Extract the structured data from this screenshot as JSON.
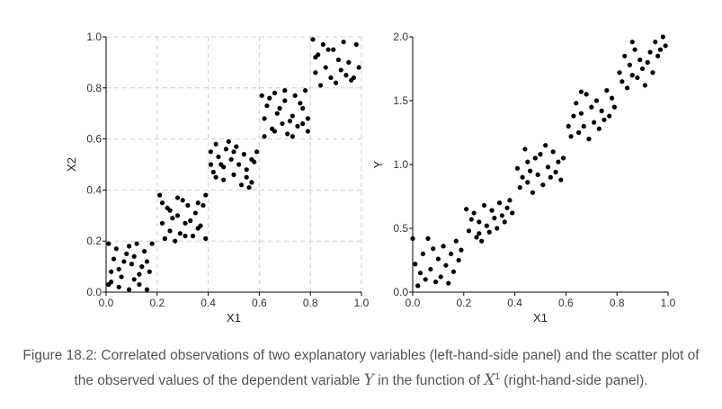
{
  "chart_data": [
    {
      "type": "scatter",
      "xlabel": "X1",
      "ylabel": "X2",
      "xlim": [
        0,
        1
      ],
      "ylim": [
        0,
        1
      ],
      "xticks": [
        "0.0",
        "0.2",
        "0.4",
        "0.6",
        "0.8",
        "1.0"
      ],
      "yticks": [
        "0.0",
        "0.2",
        "0.4",
        "0.6",
        "0.8",
        "1.0"
      ],
      "grid": "dashed",
      "point_color": "#000000",
      "points": [
        [
          0.01,
          0.19
        ],
        [
          0.02,
          0.08
        ],
        [
          0.04,
          0.17
        ],
        [
          0.05,
          0.02
        ],
        [
          0.07,
          0.12
        ],
        [
          0.09,
          0.18
        ],
        [
          0.11,
          0.05
        ],
        [
          0.12,
          0.19
        ],
        [
          0.14,
          0.1
        ],
        [
          0.16,
          0.01
        ],
        [
          0.03,
          0.13
        ],
        [
          0.06,
          0.06
        ],
        [
          0.08,
          0.15
        ],
        [
          0.1,
          0.11
        ],
        [
          0.13,
          0.03
        ],
        [
          0.15,
          0.16
        ],
        [
          0.17,
          0.08
        ],
        [
          0.02,
          0.04
        ],
        [
          0.11,
          0.14
        ],
        [
          0.18,
          0.19
        ],
        [
          0.05,
          0.09
        ],
        [
          0.13,
          0.07
        ],
        [
          0.09,
          0.01
        ],
        [
          0.16,
          0.12
        ],
        [
          0.01,
          0.03
        ],
        [
          0.21,
          0.38
        ],
        [
          0.22,
          0.27
        ],
        [
          0.24,
          0.33
        ],
        [
          0.25,
          0.24
        ],
        [
          0.27,
          0.2
        ],
        [
          0.28,
          0.3
        ],
        [
          0.3,
          0.36
        ],
        [
          0.31,
          0.22
        ],
        [
          0.33,
          0.28
        ],
        [
          0.35,
          0.31
        ],
        [
          0.36,
          0.25
        ],
        [
          0.38,
          0.34
        ],
        [
          0.39,
          0.21
        ],
        [
          0.22,
          0.35
        ],
        [
          0.26,
          0.29
        ],
        [
          0.29,
          0.23
        ],
        [
          0.32,
          0.34
        ],
        [
          0.34,
          0.22
        ],
        [
          0.37,
          0.26
        ],
        [
          0.39,
          0.38
        ],
        [
          0.23,
          0.21
        ],
        [
          0.28,
          0.37
        ],
        [
          0.31,
          0.27
        ],
        [
          0.36,
          0.35
        ],
        [
          0.25,
          0.32
        ],
        [
          0.41,
          0.55
        ],
        [
          0.42,
          0.47
        ],
        [
          0.43,
          0.58
        ],
        [
          0.45,
          0.5
        ],
        [
          0.46,
          0.44
        ],
        [
          0.47,
          0.56
        ],
        [
          0.49,
          0.52
        ],
        [
          0.5,
          0.46
        ],
        [
          0.51,
          0.57
        ],
        [
          0.53,
          0.42
        ],
        [
          0.54,
          0.54
        ],
        [
          0.55,
          0.48
        ],
        [
          0.57,
          0.43
        ],
        [
          0.58,
          0.51
        ],
        [
          0.59,
          0.55
        ],
        [
          0.44,
          0.53
        ],
        [
          0.48,
          0.59
        ],
        [
          0.52,
          0.5
        ],
        [
          0.56,
          0.41
        ],
        [
          0.41,
          0.5
        ],
        [
          0.46,
          0.49
        ],
        [
          0.5,
          0.55
        ],
        [
          0.55,
          0.45
        ],
        [
          0.57,
          0.52
        ],
        [
          0.43,
          0.45
        ],
        [
          0.61,
          0.77
        ],
        [
          0.62,
          0.68
        ],
        [
          0.63,
          0.73
        ],
        [
          0.65,
          0.64
        ],
        [
          0.66,
          0.78
        ],
        [
          0.67,
          0.7
        ],
        [
          0.69,
          0.66
        ],
        [
          0.7,
          0.75
        ],
        [
          0.71,
          0.62
        ],
        [
          0.73,
          0.69
        ],
        [
          0.74,
          0.77
        ],
        [
          0.75,
          0.65
        ],
        [
          0.77,
          0.72
        ],
        [
          0.78,
          0.79
        ],
        [
          0.79,
          0.63
        ],
        [
          0.62,
          0.61
        ],
        [
          0.64,
          0.76
        ],
        [
          0.68,
          0.72
        ],
        [
          0.72,
          0.67
        ],
        [
          0.76,
          0.74
        ],
        [
          0.79,
          0.68
        ],
        [
          0.66,
          0.63
        ],
        [
          0.7,
          0.79
        ],
        [
          0.73,
          0.61
        ],
        [
          0.77,
          0.66
        ],
        [
          0.81,
          0.99
        ],
        [
          0.82,
          0.86
        ],
        [
          0.83,
          0.93
        ],
        [
          0.84,
          0.81
        ],
        [
          0.85,
          0.97
        ],
        [
          0.86,
          0.88
        ],
        [
          0.88,
          0.84
        ],
        [
          0.89,
          0.95
        ],
        [
          0.9,
          0.82
        ],
        [
          0.91,
          0.91
        ],
        [
          0.93,
          0.98
        ],
        [
          0.94,
          0.85
        ],
        [
          0.95,
          0.9
        ],
        [
          0.96,
          0.83
        ],
        [
          0.98,
          0.97
        ],
        [
          0.99,
          0.88
        ],
        [
          0.82,
          0.92
        ],
        [
          0.87,
          0.95
        ],
        [
          0.92,
          0.87
        ],
        [
          0.97,
          0.84
        ]
      ]
    },
    {
      "type": "scatter",
      "xlabel": "X1",
      "ylabel": "Y",
      "xlim": [
        0,
        1
      ],
      "ylim": [
        0,
        2
      ],
      "xticks": [
        "0.0",
        "0.2",
        "0.4",
        "0.6",
        "0.8",
        "1.0"
      ],
      "yticks": [
        "0.0",
        "0.5",
        "1.0",
        "1.5",
        "2.0"
      ],
      "grid": "none",
      "point_color": "#000000",
      "points": [
        [
          0.0,
          0.42
        ],
        [
          0.01,
          0.22
        ],
        [
          0.02,
          0.05
        ],
        [
          0.03,
          0.15
        ],
        [
          0.04,
          0.3
        ],
        [
          0.05,
          0.1
        ],
        [
          0.06,
          0.42
        ],
        [
          0.07,
          0.18
        ],
        [
          0.08,
          0.34
        ],
        [
          0.09,
          0.08
        ],
        [
          0.1,
          0.26
        ],
        [
          0.11,
          0.12
        ],
        [
          0.12,
          0.36
        ],
        [
          0.13,
          0.21
        ],
        [
          0.14,
          0.07
        ],
        [
          0.15,
          0.3
        ],
        [
          0.16,
          0.16
        ],
        [
          0.17,
          0.4
        ],
        [
          0.18,
          0.25
        ],
        [
          0.19,
          0.33
        ],
        [
          0.21,
          0.65
        ],
        [
          0.22,
          0.48
        ],
        [
          0.23,
          0.57
        ],
        [
          0.24,
          0.62
        ],
        [
          0.25,
          0.43
        ],
        [
          0.26,
          0.55
        ],
        [
          0.27,
          0.4
        ],
        [
          0.28,
          0.68
        ],
        [
          0.29,
          0.52
        ],
        [
          0.3,
          0.47
        ],
        [
          0.31,
          0.64
        ],
        [
          0.32,
          0.58
        ],
        [
          0.33,
          0.5
        ],
        [
          0.34,
          0.7
        ],
        [
          0.35,
          0.6
        ],
        [
          0.36,
          0.55
        ],
        [
          0.37,
          0.66
        ],
        [
          0.38,
          0.72
        ],
        [
          0.39,
          0.62
        ],
        [
          0.26,
          0.46
        ],
        [
          0.41,
          0.97
        ],
        [
          0.42,
          0.82
        ],
        [
          0.43,
          0.9
        ],
        [
          0.44,
          1.12
        ],
        [
          0.45,
          0.86
        ],
        [
          0.46,
          0.95
        ],
        [
          0.47,
          0.78
        ],
        [
          0.48,
          1.05
        ],
        [
          0.49,
          0.92
        ],
        [
          0.5,
          1.08
        ],
        [
          0.51,
          0.84
        ],
        [
          0.52,
          1.15
        ],
        [
          0.53,
          0.98
        ],
        [
          0.54,
          0.9
        ],
        [
          0.55,
          1.1
        ],
        [
          0.56,
          0.94
        ],
        [
          0.57,
          1.02
        ],
        [
          0.58,
          0.88
        ],
        [
          0.59,
          1.05
        ],
        [
          0.45,
          1.02
        ],
        [
          0.61,
          1.3
        ],
        [
          0.62,
          1.22
        ],
        [
          0.63,
          1.38
        ],
        [
          0.64,
          1.48
        ],
        [
          0.65,
          1.25
        ],
        [
          0.66,
          1.4
        ],
        [
          0.67,
          1.3
        ],
        [
          0.68,
          1.55
        ],
        [
          0.69,
          1.2
        ],
        [
          0.7,
          1.45
        ],
        [
          0.71,
          1.33
        ],
        [
          0.72,
          1.5
        ],
        [
          0.73,
          1.28
        ],
        [
          0.74,
          1.42
        ],
        [
          0.75,
          1.35
        ],
        [
          0.76,
          1.58
        ],
        [
          0.77,
          1.38
        ],
        [
          0.78,
          1.52
        ],
        [
          0.79,
          1.45
        ],
        [
          0.66,
          1.57
        ],
        [
          0.81,
          1.72
        ],
        [
          0.82,
          1.65
        ],
        [
          0.83,
          1.85
        ],
        [
          0.84,
          1.6
        ],
        [
          0.85,
          1.78
        ],
        [
          0.86,
          1.7
        ],
        [
          0.87,
          1.9
        ],
        [
          0.88,
          1.68
        ],
        [
          0.89,
          1.82
        ],
        [
          0.9,
          1.75
        ],
        [
          0.91,
          1.62
        ],
        [
          0.92,
          1.8
        ],
        [
          0.93,
          1.88
        ],
        [
          0.94,
          1.72
        ],
        [
          0.95,
          1.96
        ],
        [
          0.96,
          1.85
        ],
        [
          0.97,
          1.9
        ],
        [
          0.98,
          2.0
        ],
        [
          0.99,
          1.93
        ],
        [
          0.86,
          1.96
        ]
      ]
    }
  ],
  "caption": {
    "before_y": "Figure 18.2: Correlated observations of two explanatory variables (left-hand-side panel) and the scatter plot of the observed values of the dependent variable ",
    "y_symbol": "Y",
    "middle": " in the function of ",
    "x_symbol": "X",
    "x_superscript": "1",
    "after": " (right-hand-side panel)."
  }
}
